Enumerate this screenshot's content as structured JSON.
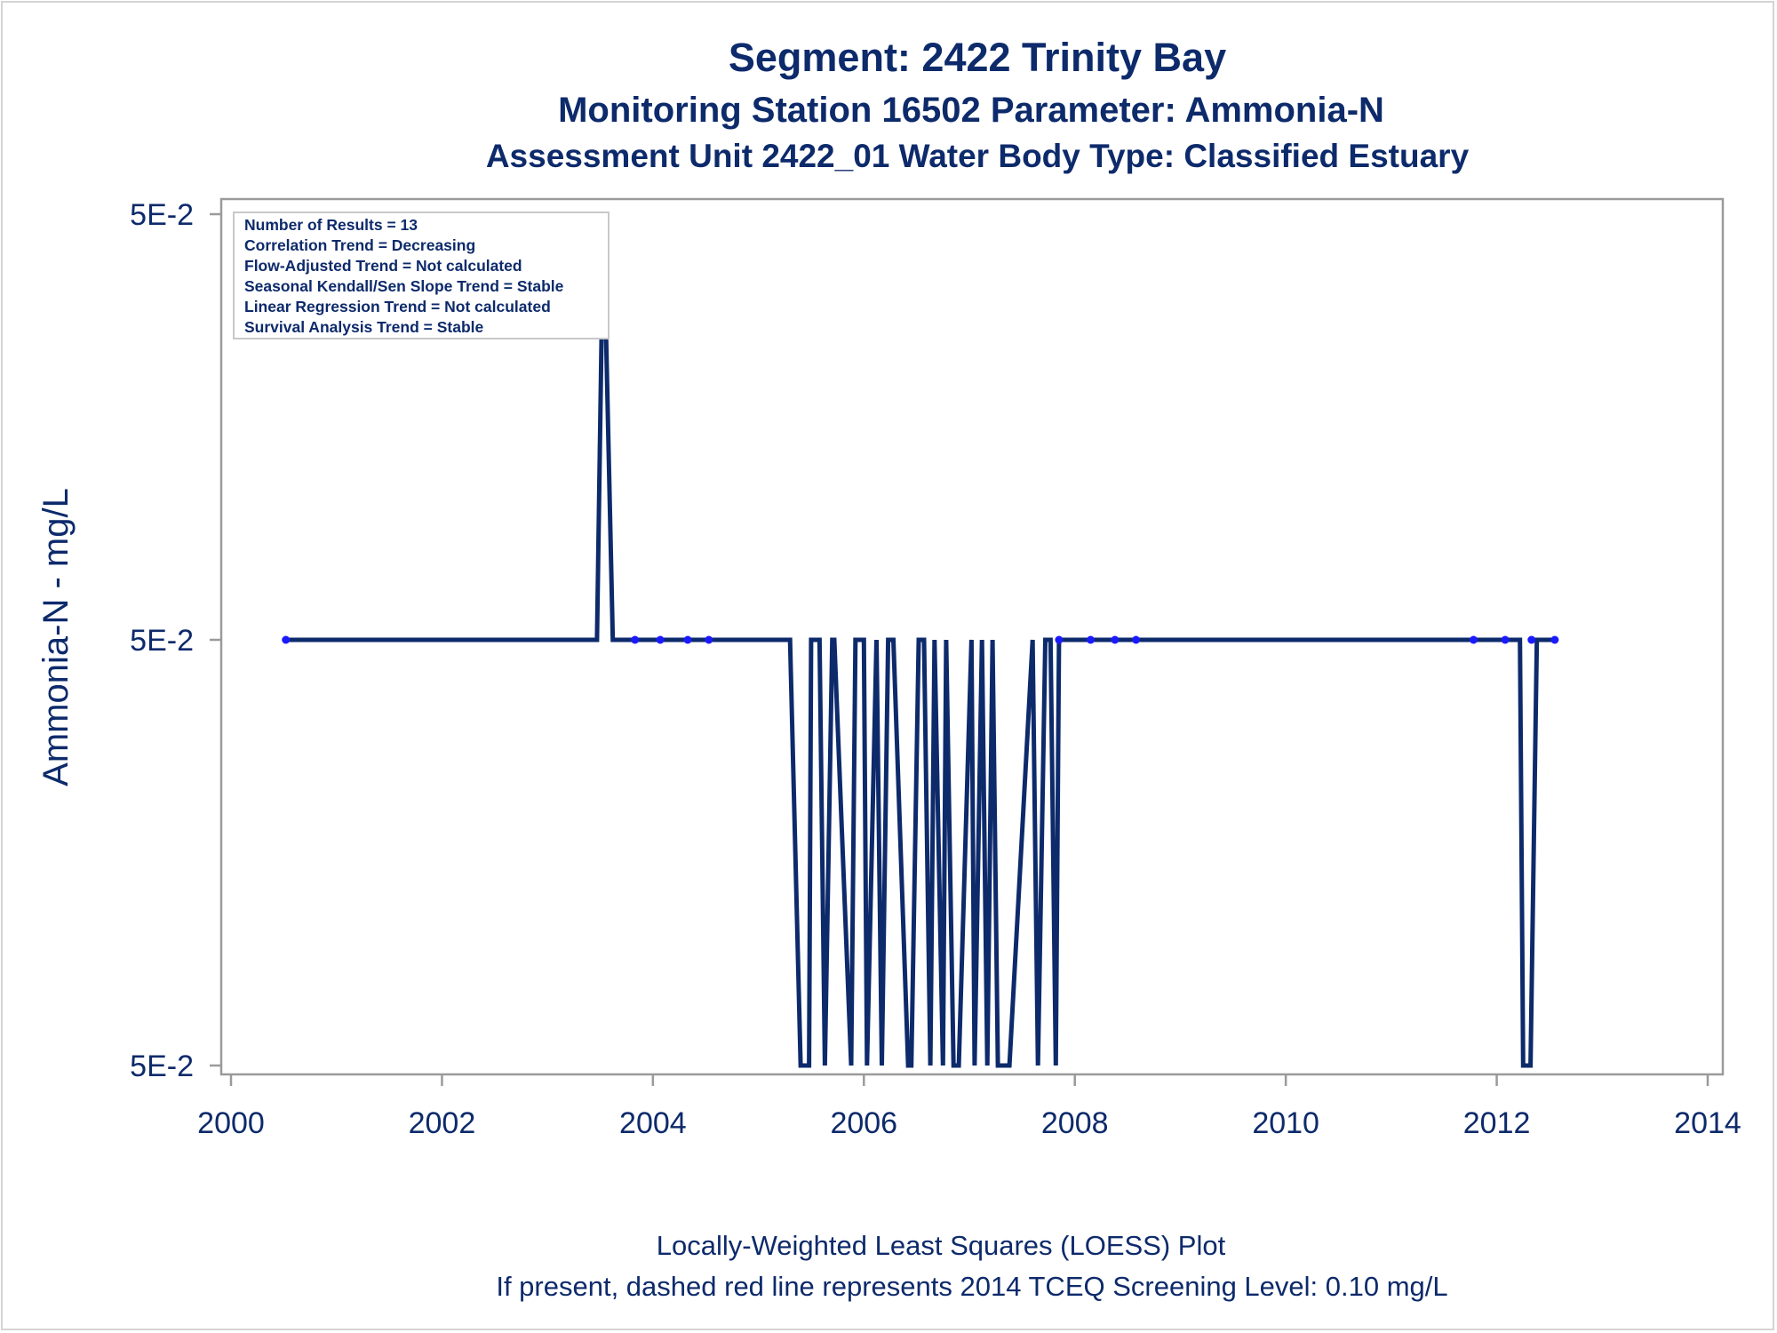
{
  "chart_data": {
    "type": "line",
    "title": "Segment: 2422  Trinity Bay",
    "subtitle": "Monitoring Station 16502 Parameter: Ammonia-N",
    "subtitle2": "Assessment Unit 2422_01   Water Body Type: Classified Estuary",
    "ylabel": "Ammonia-N - mg/L",
    "xlim": [
      2000,
      2014
    ],
    "x_ticks": [
      "2000",
      "2002",
      "2004",
      "2006",
      "2008",
      "2010",
      "2012",
      "2014"
    ],
    "y_tick_labels": [
      "5E-2",
      "5E-2",
      "5E-2"
    ],
    "ylim": [
      0.0499,
      0.0501
    ],
    "footnote1": "Locally-Weighted Least Squares (LOESS) Plot",
    "footnote2": "If present, dashed red line represents 2014 TCEQ Screening Level: 0.10 mg/L",
    "stats": [
      "Number of Results = 13",
      "Correlation Trend = Decreasing",
      "Flow-Adjusted Trend = Not calculated",
      "Seasonal Kendall/Sen Slope Trend = Stable",
      "Linear Regression Trend = Not calculated",
      "Survival Analysis Trend = Stable"
    ],
    "series": [
      {
        "kind": "observations",
        "x": [
          2000.52,
          2003.83,
          2004.07,
          2004.33,
          2004.53,
          2007.85,
          2008.15,
          2008.38,
          2008.58,
          2011.78,
          2012.08,
          2012.33,
          2012.55
        ],
        "y": [
          0.05,
          0.05,
          0.05,
          0.05,
          0.05,
          0.05,
          0.05,
          0.05,
          0.05,
          0.05,
          0.05,
          0.05,
          0.05
        ]
      },
      {
        "kind": "loess",
        "x": [
          2000.52,
          2003.47,
          2003.53,
          2003.62,
          2003.67,
          2005.3,
          2005.4,
          2005.48,
          2005.5,
          2005.58,
          2005.63,
          2005.7,
          2005.72,
          2005.88,
          2005.92,
          2006.0,
          2006.03,
          2006.12,
          2006.17,
          2006.23,
          2006.28,
          2006.42,
          2006.45,
          2006.52,
          2006.57,
          2006.63,
          2006.67,
          2006.75,
          2006.78,
          2006.85,
          2006.9,
          2007.02,
          2007.05,
          2007.12,
          2007.17,
          2007.22,
          2007.27,
          2007.33,
          2007.38,
          2007.6,
          2007.65,
          2007.72,
          2007.77,
          2007.82,
          2007.85,
          2007.9,
          2012.22,
          2012.25,
          2012.32,
          2012.38,
          2012.55
        ],
        "y": [
          0.05,
          0.05,
          0.0501,
          0.05,
          0.05,
          0.05,
          0.0499,
          0.0499,
          0.05,
          0.05,
          0.0499,
          0.05,
          0.05,
          0.0499,
          0.05,
          0.05,
          0.0499,
          0.05,
          0.0499,
          0.05,
          0.05,
          0.0499,
          0.0499,
          0.05,
          0.05,
          0.0499,
          0.05,
          0.0499,
          0.05,
          0.0499,
          0.0499,
          0.05,
          0.0499,
          0.05,
          0.0499,
          0.05,
          0.0499,
          0.0499,
          0.0499,
          0.05,
          0.0499,
          0.05,
          0.05,
          0.0499,
          0.05,
          0.05,
          0.05,
          0.0499,
          0.0499,
          0.05,
          0.05
        ]
      }
    ],
    "colors": {
      "text": "#0d2a6b",
      "line": "#0d2a6b",
      "marker": "#1a1aff",
      "axis": "#9a9a9a"
    },
    "grid": false
  }
}
